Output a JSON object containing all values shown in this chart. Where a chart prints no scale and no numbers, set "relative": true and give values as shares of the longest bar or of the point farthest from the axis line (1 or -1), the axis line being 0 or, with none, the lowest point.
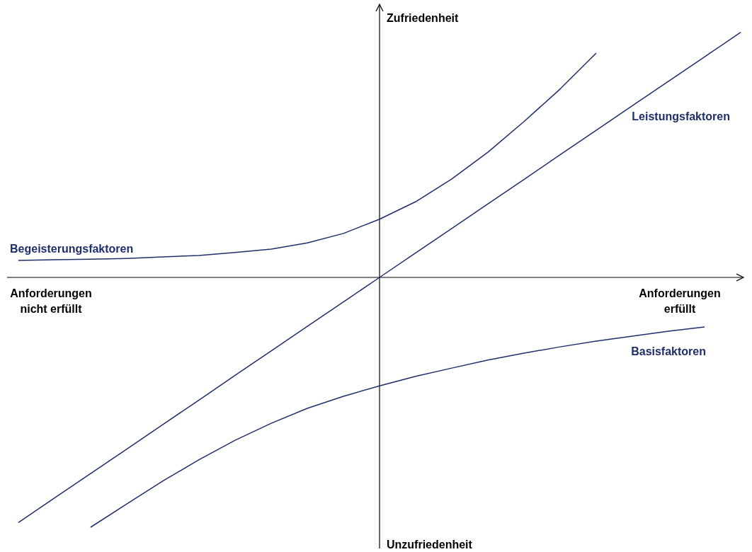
{
  "chart_data": {
    "type": "line",
    "relative": true,
    "xlabel": "Anforderungen erfüllt",
    "ylabel": "Zufriedenheit",
    "annotations": [
      "Anforderungen nicht erfüllt",
      "Unzufriedenheit"
    ],
    "marker": "none",
    "line_style": "solid",
    "categories": [
      null,
      null,
      null,
      null,
      null,
      null,
      null,
      null,
      null,
      null,
      null,
      null,
      null,
      null,
      null,
      null,
      null,
      null,
      null,
      null,
      null
    ],
    "series": [
      {
        "name": "Begeisterungsfaktoren",
        "color": "#1f2d6b",
        "values": [
          0.068,
          0.071,
          0.073,
          0.076,
          0.082,
          0.088,
          0.1,
          0.113,
          0.138,
          0.176,
          0.233,
          0.303,
          0.394,
          0.501,
          0.624,
          0.754,
          0.898,
          null,
          null,
          null,
          null
        ]
      },
      {
        "name": "Leistungsfaktoren",
        "color": "#1f2d6b",
        "values": [
          -0.981,
          -0.883,
          -0.785,
          -0.687,
          -0.589,
          -0.491,
          -0.392,
          -0.294,
          -0.196,
          -0.098,
          0,
          0.098,
          0.196,
          0.294,
          0.392,
          0.491,
          0.589,
          0.687,
          0.785,
          0.883,
          0.981
        ]
      },
      {
        "name": "Basisfaktoren",
        "color": "#1f2d6b",
        "values": [
          null,
          null,
          -1,
          -0.907,
          -0.815,
          -0.73,
          -0.652,
          -0.584,
          -0.524,
          -0.476,
          -0.434,
          -0.396,
          -0.363,
          -0.331,
          -0.303,
          -0.278,
          -0.255,
          -0.235,
          -0.215,
          -0.198,
          null
        ]
      }
    ]
  }
}
